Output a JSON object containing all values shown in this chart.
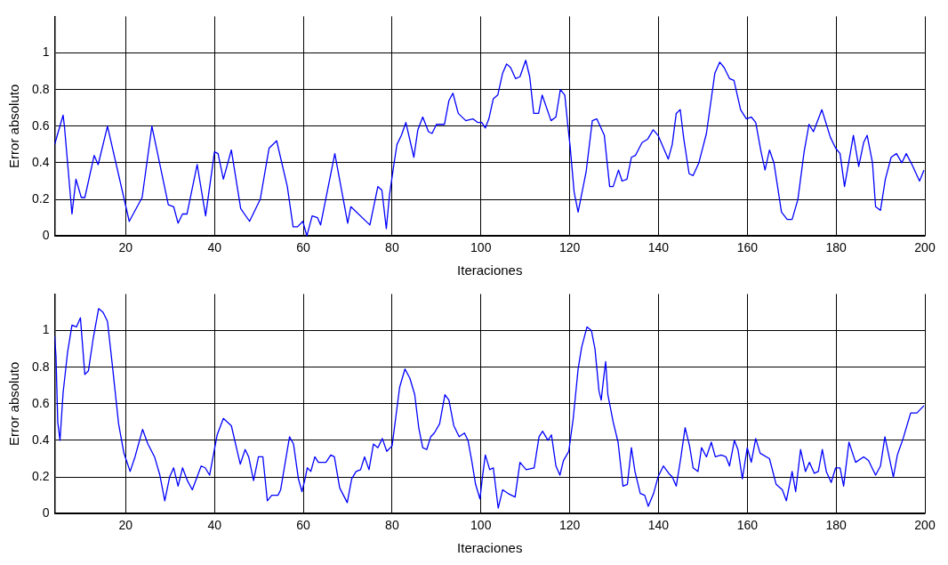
{
  "chart_data": [
    {
      "type": "line",
      "xlabel": "Iteraciones",
      "ylabel": "Error absoluto",
      "xlim": [
        4,
        200
      ],
      "ylim": [
        0,
        1.2
      ],
      "xticks": [
        20,
        40,
        60,
        80,
        100,
        120,
        140,
        160,
        180,
        200
      ],
      "yticks": [
        0,
        0.2,
        0.4,
        0.6,
        0.8,
        1
      ],
      "grid": true,
      "legend": false,
      "marker": "none",
      "line_style": "solid",
      "color": "#0000ff",
      "x": [
        4,
        5.9,
        6.2,
        7.9,
        8.8,
        10,
        10.8,
        12.9,
        13.8,
        15.9,
        20.8,
        23.7,
        25.9,
        29.6,
        30.8,
        31.8,
        32.8,
        33.8,
        36.1,
        38,
        40,
        40.8,
        42,
        43.8,
        45.9,
        47.9,
        50.3,
        52.3,
        54,
        56.4,
        57.7,
        58.7,
        59.9,
        60.8,
        62,
        63.2,
        63.9,
        67.1,
        70,
        70.7,
        75,
        76.8,
        77.7,
        78.7,
        79.4,
        80.4,
        81.1,
        82.1,
        83.1,
        84.9,
        85.8,
        86.9,
        88.2,
        89,
        90,
        91.8,
        92.8,
        93.7,
        94.9,
        96.6,
        98.2,
        99.3,
        100.2,
        101,
        101.8,
        102.8,
        103.8,
        104.9,
        105.8,
        106.7,
        107.8,
        108.8,
        110.1,
        111,
        111.9,
        113,
        113.8,
        115.8,
        116.9,
        117.9,
        118.9,
        119.6,
        120.1,
        121,
        121.9,
        123.7,
        125.1,
        126.1,
        127.8,
        129,
        129.8,
        131,
        131.8,
        132.9,
        133.9,
        134.8,
        136.3,
        137.6,
        138.8,
        139.9,
        142.2,
        143.1,
        144,
        144.9,
        145.7,
        146.9,
        147.8,
        149.1,
        150.8,
        152.7,
        153.8,
        154.8,
        156,
        157,
        158.5,
        159.8,
        160.9,
        161.9,
        163.1,
        164,
        165,
        166,
        167.7,
        169,
        170.1,
        171.4,
        172.8,
        173.9,
        174.9,
        176.8,
        178.7,
        179.9,
        180.9,
        181.9,
        183.9,
        185.1,
        186.2,
        187,
        188.2,
        188.9,
        190,
        191.1,
        192.4,
        193.6,
        194.8,
        195.8,
        197.1,
        198.8,
        199.8
      ],
      "values": [
        0.5,
        0.66,
        0.6,
        0.12,
        0.31,
        0.21,
        0.21,
        0.44,
        0.39,
        0.6,
        0.08,
        0.21,
        0.6,
        0.17,
        0.16,
        0.07,
        0.12,
        0.12,
        0.39,
        0.11,
        0.46,
        0.45,
        0.31,
        0.47,
        0.15,
        0.08,
        0.2,
        0.48,
        0.52,
        0.27,
        0.05,
        0.05,
        0.08,
        0,
        0.11,
        0.1,
        0.06,
        0.45,
        0.07,
        0.16,
        0.06,
        0.27,
        0.25,
        0.04,
        0.22,
        0.39,
        0.5,
        0.55,
        0.62,
        0.43,
        0.58,
        0.65,
        0.57,
        0.56,
        0.61,
        0.61,
        0.74,
        0.78,
        0.67,
        0.63,
        0.64,
        0.62,
        0.62,
        0.59,
        0.64,
        0.75,
        0.77,
        0.89,
        0.94,
        0.92,
        0.86,
        0.87,
        0.96,
        0.87,
        0.67,
        0.67,
        0.77,
        0.63,
        0.65,
        0.8,
        0.77,
        0.6,
        0.49,
        0.24,
        0.13,
        0.35,
        0.63,
        0.64,
        0.55,
        0.27,
        0.27,
        0.36,
        0.3,
        0.31,
        0.43,
        0.44,
        0.51,
        0.53,
        0.58,
        0.55,
        0.42,
        0.5,
        0.67,
        0.69,
        0.53,
        0.34,
        0.33,
        0.4,
        0.56,
        0.89,
        0.95,
        0.92,
        0.86,
        0.85,
        0.69,
        0.64,
        0.65,
        0.62,
        0.46,
        0.36,
        0.47,
        0.4,
        0.13,
        0.09,
        0.09,
        0.2,
        0.46,
        0.61,
        0.57,
        0.69,
        0.54,
        0.48,
        0.45,
        0.27,
        0.55,
        0.38,
        0.51,
        0.55,
        0.4,
        0.16,
        0.14,
        0.31,
        0.43,
        0.45,
        0.4,
        0.45,
        0.39,
        0.3,
        0.36
      ]
    },
    {
      "type": "line",
      "xlabel": "Iteraciones",
      "ylabel": "Error absoluto",
      "xlim": [
        4,
        200
      ],
      "ylim": [
        0,
        1.2
      ],
      "xticks": [
        20,
        40,
        60,
        80,
        100,
        120,
        140,
        160,
        180,
        200
      ],
      "yticks": [
        0,
        0.2,
        0.4,
        0.6,
        0.8,
        1
      ],
      "grid": true,
      "legend": false,
      "marker": "none",
      "line_style": "solid",
      "color": "#0000ff",
      "x": [
        4,
        4.3,
        4.7,
        5.2,
        5.9,
        6.9,
        7.9,
        8.9,
        9.8,
        10.8,
        11.6,
        12.7,
        13.9,
        14.9,
        15.9,
        17,
        18.4,
        19.6,
        21,
        22.1,
        23.8,
        25,
        26.5,
        27.7,
        28.8,
        29.9,
        30.8,
        31.8,
        32.8,
        33.9,
        35,
        37,
        37.9,
        38.9,
        40.6,
        42,
        43.8,
        45.8,
        46.9,
        47.7,
        48.8,
        49.9,
        50.9,
        51.9,
        52.9,
        54.3,
        54.9,
        56.9,
        57.8,
        58.9,
        59.7,
        60.4,
        60.9,
        61.7,
        62.6,
        63.4,
        65.1,
        66.2,
        67,
        68.2,
        69.9,
        70.9,
        71.9,
        72.9,
        73.8,
        74.8,
        75.8,
        76.8,
        77.8,
        78.8,
        80,
        80.8,
        81.7,
        82.9,
        84,
        85.1,
        86,
        86.9,
        87.8,
        88.7,
        89.5,
        90.7,
        91.9,
        92.8,
        93.9,
        95.1,
        96.3,
        97.1,
        98,
        98.8,
        99.8,
        100.3,
        101,
        102,
        102.8,
        103.9,
        104.9,
        106.1,
        107.7,
        108.8,
        110.2,
        112,
        113.1,
        113.9,
        115.1,
        115.9,
        116.9,
        117.8,
        118.6,
        119.8,
        120.8,
        121.9,
        122.7,
        123.9,
        124.9,
        125.7,
        126.6,
        127.1,
        127.6,
        128.1,
        128.6,
        129.8,
        130.9,
        132,
        133,
        133.9,
        134.7,
        135.9,
        136.9,
        137.7,
        138.9,
        139.9,
        141.1,
        142.3,
        143.1,
        144,
        145,
        146,
        147,
        147.8,
        148.9,
        149.7,
        150.8,
        151.9,
        152.8,
        154.1,
        155.2,
        156,
        157.1,
        157.9,
        158.9,
        159.6,
        160,
        160.9,
        161.9,
        162.9,
        165,
        166.5,
        167.9,
        168.8,
        170.1,
        170.9,
        172,
        173.1,
        174,
        175.1,
        176,
        176.9,
        177.8,
        178.9,
        179.9,
        180.9,
        181.7,
        182.9,
        184.4,
        186.2,
        187.3,
        188.9,
        190,
        191,
        192.9,
        193.8,
        195.1,
        196.8,
        198.2,
        199.8
      ],
      "values": [
        0.97,
        0.86,
        0.5,
        0.4,
        0.66,
        0.88,
        1.03,
        1.02,
        1.07,
        0.76,
        0.78,
        0.96,
        1.12,
        1.1,
        1.05,
        0.81,
        0.49,
        0.33,
        0.23,
        0.31,
        0.46,
        0.38,
        0.31,
        0.21,
        0.07,
        0.2,
        0.25,
        0.15,
        0.25,
        0.18,
        0.13,
        0.26,
        0.25,
        0.21,
        0.43,
        0.52,
        0.48,
        0.27,
        0.35,
        0.31,
        0.18,
        0.31,
        0.31,
        0.07,
        0.1,
        0.1,
        0.13,
        0.42,
        0.38,
        0.19,
        0.12,
        0.19,
        0.25,
        0.23,
        0.31,
        0.28,
        0.28,
        0.32,
        0.31,
        0.14,
        0.06,
        0.19,
        0.23,
        0.24,
        0.31,
        0.24,
        0.38,
        0.36,
        0.41,
        0.34,
        0.37,
        0.52,
        0.69,
        0.79,
        0.74,
        0.65,
        0.47,
        0.36,
        0.35,
        0.42,
        0.44,
        0.49,
        0.65,
        0.62,
        0.48,
        0.42,
        0.44,
        0.4,
        0.28,
        0.16,
        0.08,
        0.19,
        0.32,
        0.24,
        0.25,
        0.03,
        0.13,
        0.11,
        0.09,
        0.28,
        0.24,
        0.25,
        0.42,
        0.45,
        0.4,
        0.43,
        0.26,
        0.21,
        0.29,
        0.34,
        0.52,
        0.79,
        0.91,
        1.02,
        1,
        0.9,
        0.67,
        0.62,
        0.73,
        0.83,
        0.65,
        0.5,
        0.39,
        0.15,
        0.16,
        0.36,
        0.23,
        0.11,
        0.1,
        0.04,
        0.11,
        0.2,
        0.26,
        0.22,
        0.2,
        0.15,
        0.3,
        0.47,
        0.37,
        0.25,
        0.23,
        0.36,
        0.31,
        0.39,
        0.31,
        0.32,
        0.31,
        0.26,
        0.4,
        0.35,
        0.19,
        0.3,
        0.36,
        0.28,
        0.41,
        0.33,
        0.3,
        0.16,
        0.13,
        0.07,
        0.23,
        0.12,
        0.35,
        0.23,
        0.28,
        0.22,
        0.23,
        0.35,
        0.23,
        0.17,
        0.25,
        0.25,
        0.15,
        0.39,
        0.28,
        0.31,
        0.29,
        0.21,
        0.26,
        0.42,
        0.2,
        0.32,
        0.41,
        0.55,
        0.55,
        0.59
      ]
    }
  ]
}
